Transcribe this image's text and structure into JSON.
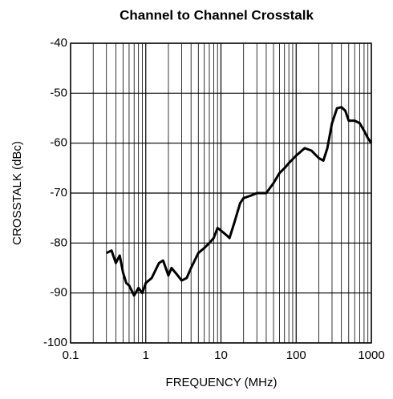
{
  "chart_data": {
    "type": "line",
    "title": "Channel to Channel Crosstalk",
    "xlabel": "FREQUENCY (MHz)",
    "ylabel": "CROSSTALK (dBc)",
    "x": [
      0.3,
      0.35,
      0.4,
      0.45,
      0.5,
      0.55,
      0.6,
      0.7,
      0.8,
      0.9,
      1.0,
      1.2,
      1.5,
      1.7,
      2.0,
      2.2,
      2.5,
      3.0,
      3.5,
      4,
      5,
      6,
      7,
      8,
      9,
      10,
      12,
      13,
      15,
      18,
      20,
      25,
      30,
      40,
      50,
      60,
      70,
      80,
      100,
      130,
      160,
      200,
      230,
      260,
      300,
      350,
      400,
      450,
      500,
      600,
      700,
      800,
      900,
      1000
    ],
    "values": [
      -82,
      -81.5,
      -84,
      -82.5,
      -86,
      -88,
      -88.5,
      -90.5,
      -89,
      -90,
      -88,
      -87,
      -84,
      -83.5,
      -86.5,
      -85,
      -86,
      -87.5,
      -87,
      -85,
      -82,
      -81,
      -80,
      -79,
      -77,
      -77.5,
      -78.5,
      -79,
      -76,
      -72,
      -71,
      -70.5,
      -70,
      -70,
      -68,
      -66,
      -65,
      -64,
      -62.5,
      -61,
      -61.5,
      -63,
      -63.5,
      -61,
      -56,
      -53,
      -52.8,
      -53.5,
      -55.5,
      -55.5,
      -56,
      -57.5,
      -59,
      -60
    ],
    "color": "#000000",
    "xscale": "log",
    "xlim": [
      0.1,
      1000
    ],
    "xticks": [
      0.1,
      1,
      10,
      100,
      1000
    ],
    "xminor": [
      0.2,
      0.3,
      0.4,
      0.5,
      0.6,
      0.7,
      0.8,
      0.9,
      2,
      3,
      4,
      5,
      6,
      7,
      8,
      9,
      20,
      30,
      40,
      50,
      60,
      70,
      80,
      90,
      200,
      300,
      400,
      500,
      600,
      700,
      800,
      900
    ],
    "ylim": [
      -100,
      -40
    ],
    "yticks": [
      -100,
      -90,
      -80,
      -70,
      -60,
      -50,
      -40
    ],
    "grid": true
  }
}
